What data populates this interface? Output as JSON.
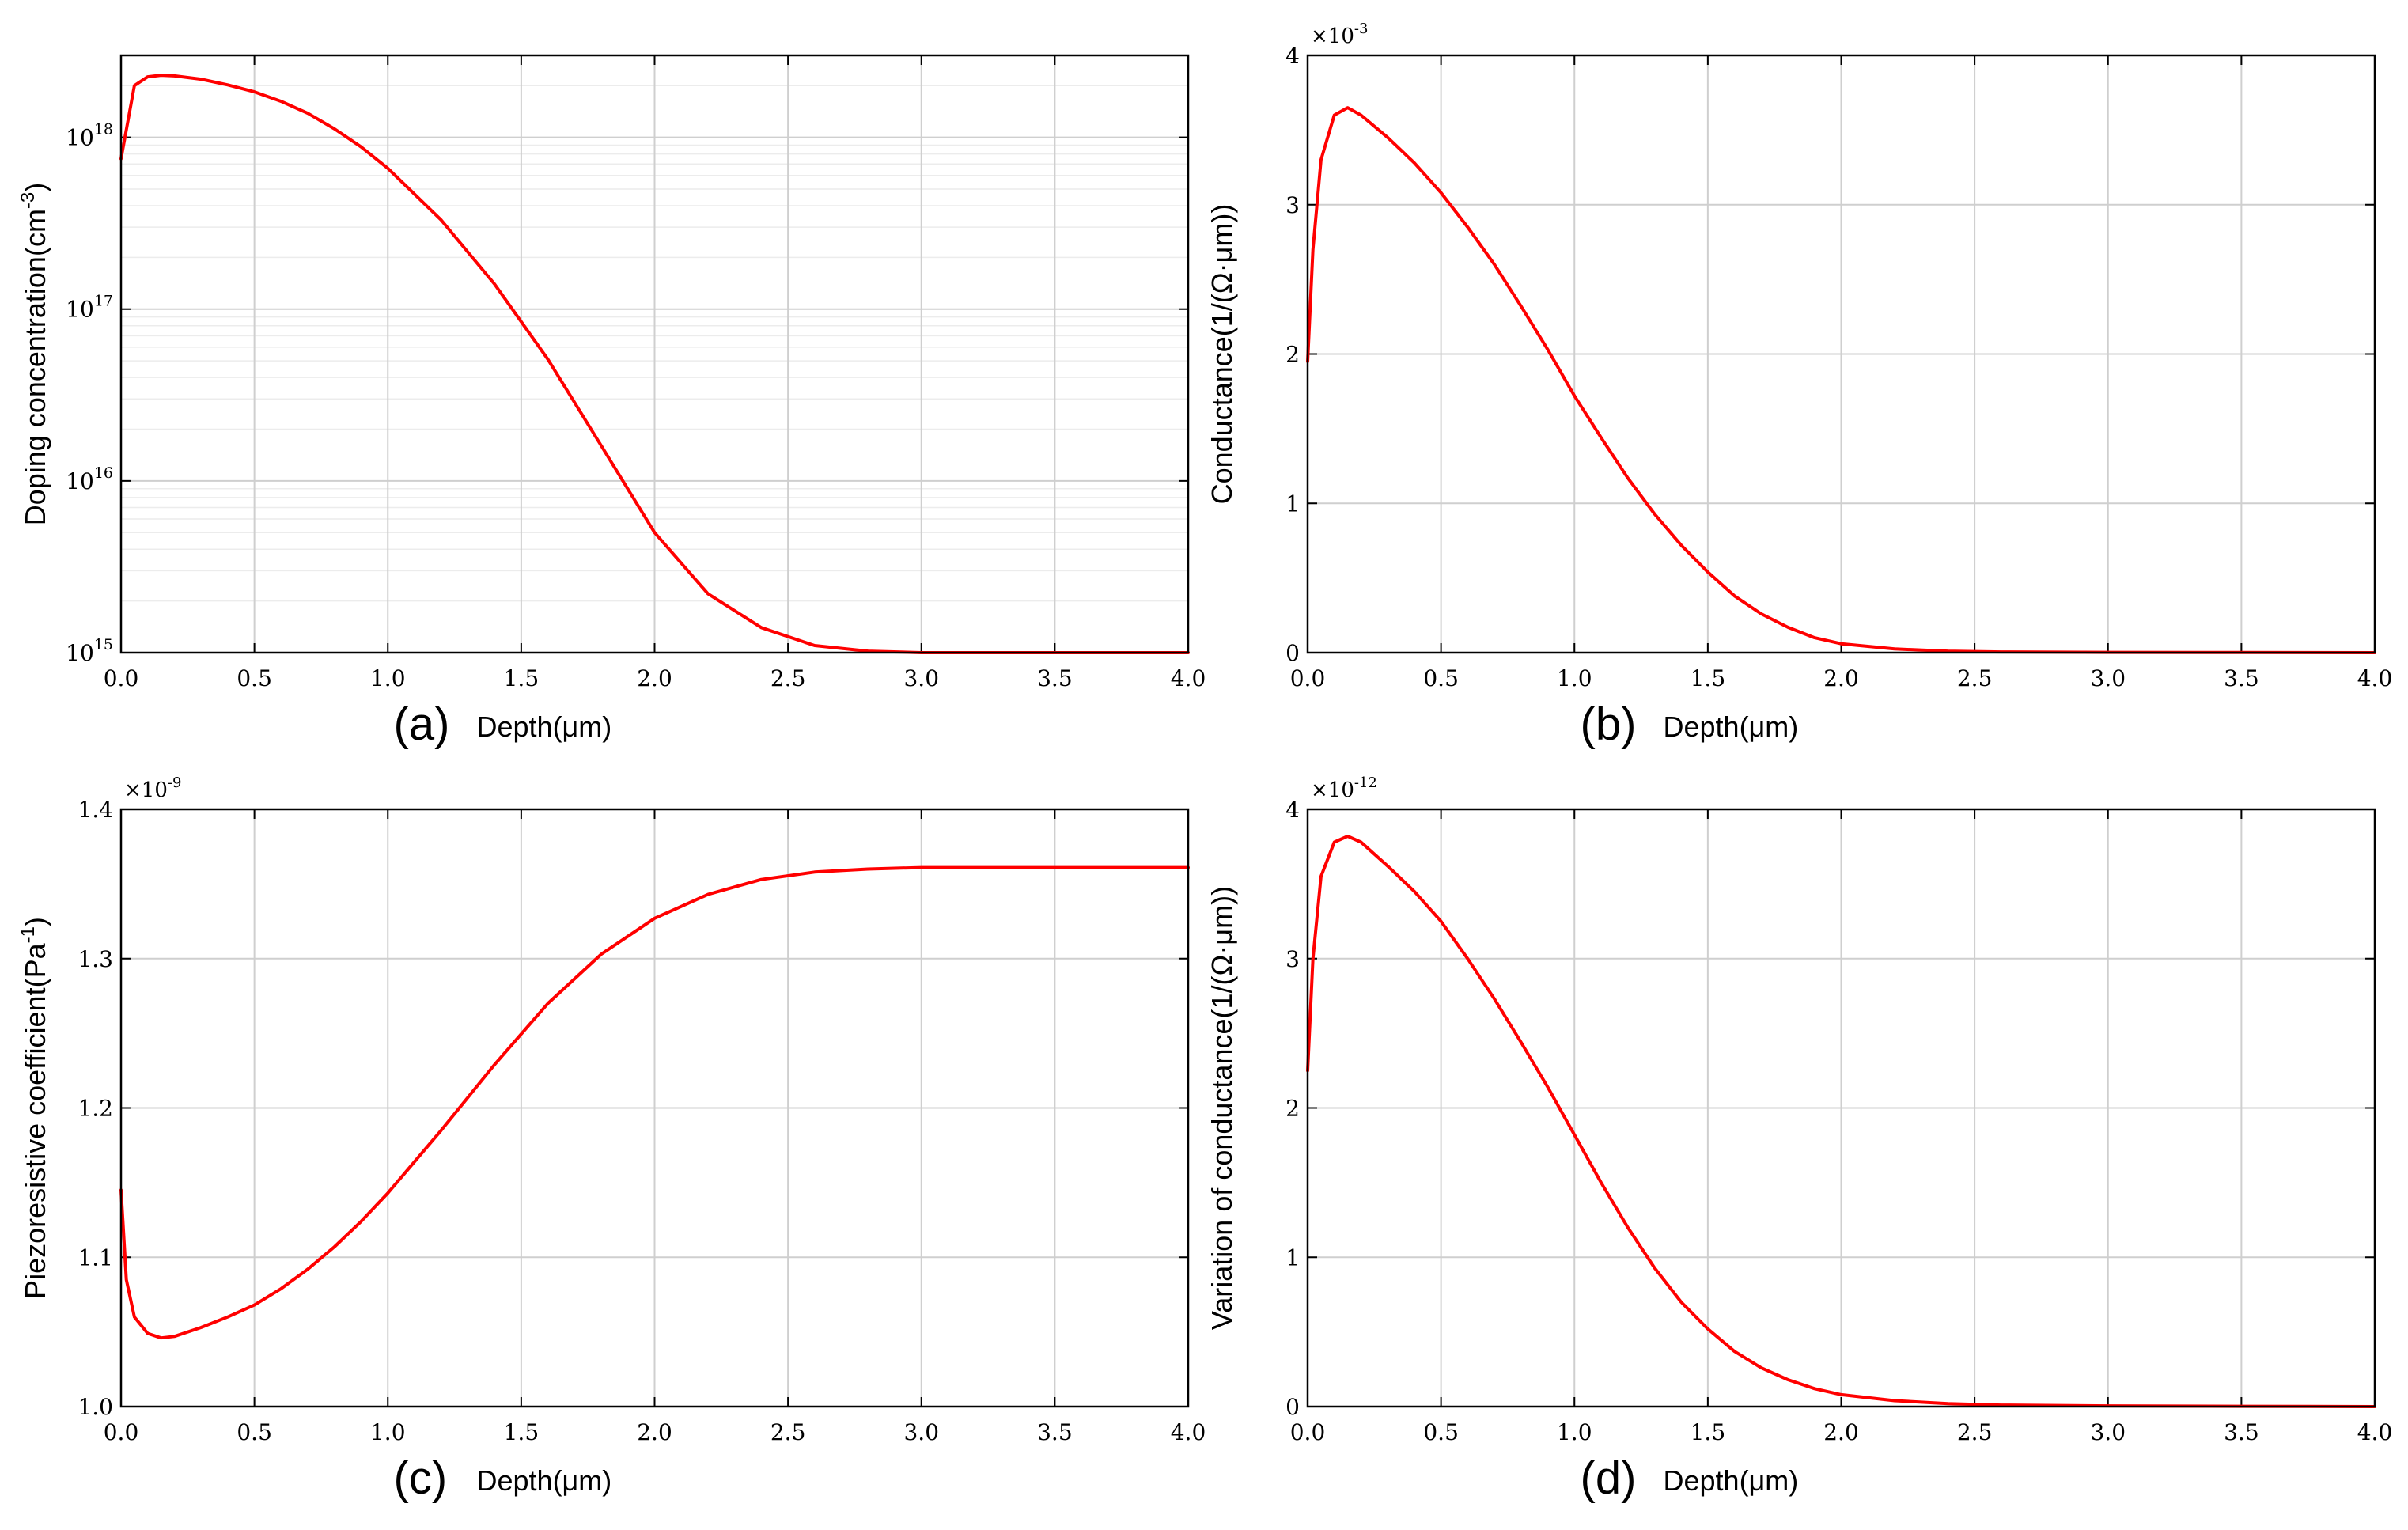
{
  "chart_data": [
    {
      "id": "a",
      "type": "line",
      "panel_label": "(a)",
      "xlabel": "Depth(μm)",
      "ylabel": "Doping concentration(cm",
      "ylabel_sup": "-3",
      "ylabel_end": ")",
      "yscale": "log",
      "xlim": [
        0,
        4
      ],
      "ylim": [
        1000000000000000.0,
        3e+18
      ],
      "x_ticks": [
        "0.0",
        "0.5",
        "1.0",
        "1.5",
        "2.0",
        "2.5",
        "3.0",
        "3.5",
        "4.0"
      ],
      "y_ticks": [
        {
          "base": "10",
          "exp": "15",
          "value": 1000000000000000.0
        },
        {
          "base": "10",
          "exp": "16",
          "value": 1e+16
        },
        {
          "base": "10",
          "exp": "17",
          "value": 1e+17
        },
        {
          "base": "10",
          "exp": "18",
          "value": 1e+18
        }
      ],
      "multiplier": null,
      "color": "#ff0000",
      "series": [
        {
          "name": "Doping concentration",
          "x": [
            0,
            0.05,
            0.1,
            0.15,
            0.2,
            0.3,
            0.4,
            0.5,
            0.6,
            0.7,
            0.8,
            0.9,
            1.0,
            1.2,
            1.4,
            1.6,
            1.8,
            2.0,
            2.2,
            2.4,
            2.6,
            2.8,
            3.0,
            3.5,
            4.0
          ],
          "y": [
            7.5e+17,
            2e+18,
            2.25e+18,
            2.3e+18,
            2.28e+18,
            2.18e+18,
            2.02e+18,
            1.84e+18,
            1.62e+18,
            1.38e+18,
            1.12e+18,
            8.8e+17,
            6.6e+17,
            3.3e+17,
            1.4e+17,
            5.1e+16,
            1.6e+16,
            5000000000000000.0,
            2200000000000000.0,
            1400000000000000.0,
            1100000000000000.0,
            1020000000000000.0,
            1000000000000000.0,
            1000000000000000.0,
            1000000000000000.0
          ]
        }
      ]
    },
    {
      "id": "b",
      "type": "line",
      "panel_label": "(b)",
      "xlabel": "Depth(μm)",
      "ylabel": "Conductance(1/(Ω·μm))",
      "yscale": "linear",
      "xlim": [
        0,
        4
      ],
      "ylim": [
        0,
        4
      ],
      "x_ticks": [
        "0.0",
        "0.5",
        "1.0",
        "1.5",
        "2.0",
        "2.5",
        "3.0",
        "3.5",
        "4.0"
      ],
      "y_ticks": [
        {
          "label": "0",
          "value": 0
        },
        {
          "label": "1",
          "value": 1
        },
        {
          "label": "2",
          "value": 2
        },
        {
          "label": "3",
          "value": 3
        },
        {
          "label": "4",
          "value": 4
        }
      ],
      "multiplier": {
        "base": "×10",
        "exp": "-3"
      },
      "color": "#ff0000",
      "series": [
        {
          "name": "Conductance",
          "x": [
            0,
            0.02,
            0.05,
            0.1,
            0.15,
            0.2,
            0.3,
            0.4,
            0.5,
            0.6,
            0.7,
            0.8,
            0.9,
            1.0,
            1.1,
            1.2,
            1.3,
            1.4,
            1.5,
            1.6,
            1.7,
            1.8,
            1.9,
            2.0,
            2.2,
            2.4,
            2.6,
            3.0,
            3.5,
            4.0
          ],
          "y": [
            1.95,
            2.7,
            3.3,
            3.6,
            3.65,
            3.6,
            3.45,
            3.28,
            3.08,
            2.85,
            2.6,
            2.32,
            2.03,
            1.72,
            1.44,
            1.17,
            0.93,
            0.72,
            0.54,
            0.38,
            0.26,
            0.17,
            0.1,
            0.06,
            0.025,
            0.01,
            0.005,
            0.002,
            0.001,
            0.0
          ]
        }
      ]
    },
    {
      "id": "c",
      "type": "line",
      "panel_label": "(c)",
      "xlabel": "Depth(μm)",
      "ylabel": "Piezoresistive coefficient(Pa",
      "ylabel_sup": "-1",
      "ylabel_end": ")",
      "yscale": "linear",
      "xlim": [
        0,
        4
      ],
      "ylim": [
        1.0,
        1.4
      ],
      "x_ticks": [
        "0.0",
        "0.5",
        "1.0",
        "1.5",
        "2.0",
        "2.5",
        "3.0",
        "3.5",
        "4.0"
      ],
      "y_ticks": [
        {
          "label": "1.0",
          "value": 1.0
        },
        {
          "label": "1.1",
          "value": 1.1
        },
        {
          "label": "1.2",
          "value": 1.2
        },
        {
          "label": "1.3",
          "value": 1.3
        },
        {
          "label": "1.4",
          "value": 1.4
        }
      ],
      "multiplier": {
        "base": "×10",
        "exp": "-9"
      },
      "color": "#ff0000",
      "series": [
        {
          "name": "Piezoresistive coefficient",
          "x": [
            0,
            0.02,
            0.05,
            0.1,
            0.15,
            0.2,
            0.3,
            0.4,
            0.5,
            0.6,
            0.7,
            0.8,
            0.9,
            1.0,
            1.2,
            1.4,
            1.6,
            1.8,
            2.0,
            2.2,
            2.4,
            2.6,
            2.8,
            3.0,
            3.5,
            4.0
          ],
          "y": [
            1.145,
            1.085,
            1.06,
            1.049,
            1.046,
            1.047,
            1.053,
            1.06,
            1.068,
            1.079,
            1.092,
            1.107,
            1.124,
            1.143,
            1.185,
            1.229,
            1.27,
            1.303,
            1.327,
            1.343,
            1.353,
            1.358,
            1.36,
            1.361,
            1.361,
            1.361
          ]
        }
      ]
    },
    {
      "id": "d",
      "type": "line",
      "panel_label": "(d)",
      "xlabel": "Depth(μm)",
      "ylabel": "Variation of conductance(1/(Ω·μm))",
      "yscale": "linear",
      "xlim": [
        0,
        4
      ],
      "ylim": [
        0,
        4
      ],
      "x_ticks": [
        "0.0",
        "0.5",
        "1.0",
        "1.5",
        "2.0",
        "2.5",
        "3.0",
        "3.5",
        "4.0"
      ],
      "y_ticks": [
        {
          "label": "0",
          "value": 0
        },
        {
          "label": "1",
          "value": 1
        },
        {
          "label": "2",
          "value": 2
        },
        {
          "label": "3",
          "value": 3
        },
        {
          "label": "4",
          "value": 4
        }
      ],
      "multiplier": {
        "base": "×10",
        "exp": "-12"
      },
      "color": "#ff0000",
      "series": [
        {
          "name": "Variation of conductance",
          "x": [
            0,
            0.02,
            0.05,
            0.1,
            0.15,
            0.2,
            0.3,
            0.4,
            0.5,
            0.6,
            0.7,
            0.8,
            0.9,
            1.0,
            1.1,
            1.2,
            1.3,
            1.4,
            1.5,
            1.6,
            1.7,
            1.8,
            1.9,
            2.0,
            2.2,
            2.4,
            2.6,
            3.0,
            3.5,
            4.0
          ],
          "y": [
            2.25,
            3.0,
            3.55,
            3.78,
            3.82,
            3.78,
            3.62,
            3.45,
            3.25,
            3.0,
            2.73,
            2.44,
            2.14,
            1.82,
            1.5,
            1.2,
            0.93,
            0.7,
            0.52,
            0.37,
            0.26,
            0.18,
            0.12,
            0.08,
            0.04,
            0.02,
            0.01,
            0.005,
            0.002,
            0.0
          ]
        }
      ]
    }
  ]
}
